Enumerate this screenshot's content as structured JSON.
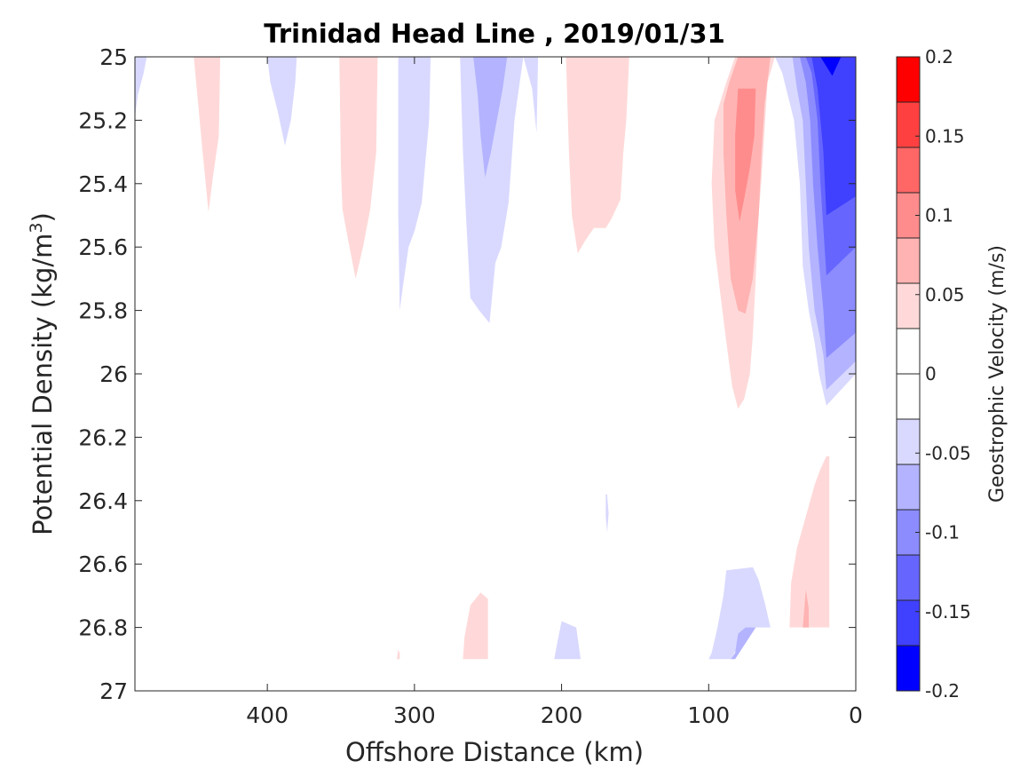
{
  "chart_data": {
    "type": "contour",
    "title": "Trinidad Head Line , 2019/01/31",
    "xlabel": "Offshore Distance (km)",
    "ylabel_main": "Potential Density (kg/m",
    "ylabel_sup": "3",
    "ylabel_close": ")",
    "xlim": [
      490,
      0
    ],
    "ylim": [
      25,
      27
    ],
    "x_ticks": [
      400,
      300,
      200,
      100,
      0
    ],
    "x_tick_labels": [
      "400",
      "300",
      "200",
      "100",
      "0"
    ],
    "y_ticks": [
      25,
      25.2,
      25.4,
      25.6,
      25.8,
      26,
      26.2,
      26.4,
      26.6,
      26.8,
      27
    ],
    "y_tick_labels": [
      "25",
      "25.2",
      "25.4",
      "25.6",
      "25.8",
      "26",
      "26.2",
      "26.4",
      "26.6",
      "26.8",
      "27"
    ],
    "colorbar": {
      "label": "Geostrophic Velocity (m/s)",
      "range": [
        -0.2,
        0.2
      ],
      "level_step": 0.025,
      "ticks": [
        0.2,
        0.15,
        0.1,
        0.05,
        0,
        -0.05,
        -0.1,
        -0.15,
        -0.2
      ],
      "tick_labels": [
        "0.2",
        "0.15",
        "0.1",
        "0.05",
        "0",
        "-0.05",
        "-0.1",
        "-0.15",
        "-0.2"
      ],
      "colors_top_to_bottom": [
        "#ff0000",
        "#ff4040",
        "#ff6666",
        "#ff8c8c",
        "#ffb3b3",
        "#ffd9d9",
        "#ffffff",
        "#ffffff",
        "#d9d9ff",
        "#b3b3ff",
        "#8c8cff",
        "#6666ff",
        "#4040ff",
        "#0000ff"
      ]
    },
    "regions": [
      {
        "level": -0.0375,
        "color": "#d9d9ff",
        "points": [
          [
            490,
            25
          ],
          [
            482,
            25
          ],
          [
            484,
            25.05
          ],
          [
            488,
            25.12
          ],
          [
            490,
            25.19
          ]
        ]
      },
      {
        "level": 0.0375,
        "color": "#ffd9d9",
        "points": [
          [
            450,
            25
          ],
          [
            432,
            25
          ],
          [
            433,
            25.25
          ],
          [
            437,
            25.38
          ],
          [
            440,
            25.49
          ],
          [
            444,
            25.3
          ],
          [
            448,
            25.1
          ]
        ]
      },
      {
        "level": -0.0375,
        "color": "#d9d9ff",
        "points": [
          [
            400,
            25
          ],
          [
            380,
            25
          ],
          [
            381,
            25.08
          ],
          [
            384,
            25.2
          ],
          [
            388,
            25.28
          ],
          [
            393,
            25.17
          ],
          [
            398,
            25.08
          ]
        ]
      },
      {
        "level": 0.0375,
        "color": "#ffd9d9",
        "points": [
          [
            351,
            25
          ],
          [
            325,
            25
          ],
          [
            326,
            25.3
          ],
          [
            330,
            25.48
          ],
          [
            335,
            25.6
          ],
          [
            340,
            25.7
          ],
          [
            345,
            25.58
          ],
          [
            349,
            25.48
          ],
          [
            350,
            25.35
          ]
        ]
      },
      {
        "level": -0.0375,
        "color": "#d9d9ff",
        "points": [
          [
            311,
            25
          ],
          [
            289,
            25
          ],
          [
            290,
            25.2
          ],
          [
            295,
            25.46
          ],
          [
            300,
            25.55
          ],
          [
            304,
            25.6
          ],
          [
            308,
            25.73
          ],
          [
            310,
            25.8
          ],
          [
            311,
            25.5
          ]
        ]
      },
      {
        "level": -0.0375,
        "color": "#d9d9ff",
        "points": [
          [
            269,
            25
          ],
          [
            216,
            25
          ],
          [
            217,
            25.24
          ],
          [
            220,
            25.1
          ],
          [
            226,
            25.0
          ],
          [
            232,
            25.2
          ],
          [
            236,
            25.46
          ],
          [
            241,
            25.6
          ],
          [
            245,
            25.65
          ],
          [
            249,
            25.84
          ],
          [
            256,
            25.8
          ],
          [
            262,
            25.76
          ],
          [
            265,
            25.5
          ],
          [
            267,
            25.3
          ]
        ]
      },
      {
        "level": -0.0625,
        "color": "#b3b3ff",
        "points": [
          [
            260,
            25
          ],
          [
            237,
            25
          ],
          [
            240,
            25.1
          ],
          [
            244,
            25.2
          ],
          [
            248,
            25.3
          ],
          [
            252,
            25.38
          ],
          [
            255,
            25.25
          ],
          [
            257,
            25.12
          ]
        ]
      },
      {
        "level": 0.0375,
        "color": "#ffd9d9",
        "points": [
          [
            197,
            25
          ],
          [
            154,
            25
          ],
          [
            156,
            25.2
          ],
          [
            158,
            25.3
          ],
          [
            160,
            25.45
          ],
          [
            166,
            25.51
          ],
          [
            170,
            25.54
          ],
          [
            178,
            25.54
          ],
          [
            184,
            25.58
          ],
          [
            189,
            25.62
          ],
          [
            193,
            25.5
          ],
          [
            195,
            25.3
          ]
        ]
      },
      {
        "level": 0.0375,
        "color": "#ffd9d9",
        "points": [
          [
            82,
            25
          ],
          [
            55,
            25
          ],
          [
            60,
            25.08
          ],
          [
            64,
            25.38
          ],
          [
            66,
            25.5
          ],
          [
            68,
            25.7
          ],
          [
            70,
            25.88
          ],
          [
            72,
            26.0
          ],
          [
            76,
            26.08
          ],
          [
            80,
            26.11
          ],
          [
            84,
            26.04
          ],
          [
            88,
            25.9
          ],
          [
            92,
            25.75
          ],
          [
            96,
            25.6
          ],
          [
            98,
            25.4
          ],
          [
            96,
            25.2
          ],
          [
            88,
            25.08
          ]
        ]
      },
      {
        "level": 0.0625,
        "color": "#ffb3b3",
        "points": [
          [
            80,
            25
          ],
          [
            58,
            25
          ],
          [
            62,
            25.15
          ],
          [
            64,
            25.3
          ],
          [
            66,
            25.5
          ],
          [
            70,
            25.7
          ],
          [
            75,
            25.81
          ],
          [
            80,
            25.8
          ],
          [
            85,
            25.7
          ],
          [
            88,
            25.5
          ],
          [
            90,
            25.3
          ],
          [
            90,
            25.15
          ],
          [
            86,
            25.08
          ]
        ]
      },
      {
        "level": 0.0875,
        "color": "#ff8c8c",
        "points": [
          [
            80,
            25.1
          ],
          [
            68,
            25.1
          ],
          [
            69,
            25.25
          ],
          [
            72,
            25.35
          ],
          [
            76,
            25.45
          ],
          [
            79,
            25.52
          ],
          [
            82,
            25.42
          ],
          [
            82,
            25.25
          ]
        ]
      },
      {
        "level": -0.0375,
        "color": "#d9d9ff",
        "points": [
          [
            55,
            25
          ],
          [
            0,
            25
          ],
          [
            0,
            26.0
          ],
          [
            20,
            26.1
          ],
          [
            25,
            26.0
          ],
          [
            28,
            25.9
          ],
          [
            32,
            25.8
          ],
          [
            36,
            25.66
          ],
          [
            38,
            25.4
          ],
          [
            42,
            25.2
          ],
          [
            50,
            25.05
          ]
        ]
      },
      {
        "level": -0.0625,
        "color": "#b3b3ff",
        "points": [
          [
            43,
            25
          ],
          [
            0,
            25
          ],
          [
            0,
            25.96
          ],
          [
            20,
            26.05
          ],
          [
            22,
            25.94
          ],
          [
            28,
            25.8
          ],
          [
            32,
            25.6
          ],
          [
            34,
            25.4
          ],
          [
            36,
            25.2
          ],
          [
            40,
            25.1
          ]
        ]
      },
      {
        "level": -0.0875,
        "color": "#8c8cff",
        "points": [
          [
            38,
            25
          ],
          [
            0,
            25
          ],
          [
            0,
            25.87
          ],
          [
            20,
            25.95
          ],
          [
            22,
            25.8
          ],
          [
            26,
            25.6
          ],
          [
            29,
            25.4
          ],
          [
            31,
            25.2
          ],
          [
            34,
            25.08
          ]
        ]
      },
      {
        "level": -0.1125,
        "color": "#6666ff",
        "points": [
          [
            34,
            25
          ],
          [
            0,
            25
          ],
          [
            0,
            25.6
          ],
          [
            20,
            25.69
          ],
          [
            24,
            25.4
          ],
          [
            26,
            25.2
          ],
          [
            30,
            25.05
          ]
        ]
      },
      {
        "level": -0.1375,
        "color": "#4040ff",
        "points": [
          [
            30,
            25
          ],
          [
            0,
            25
          ],
          [
            0,
            25.44
          ],
          [
            20,
            25.5
          ],
          [
            22,
            25.3
          ],
          [
            26,
            25.1
          ]
        ]
      },
      {
        "level": -0.1625,
        "color": "#0000ff",
        "points": [
          [
            24,
            25
          ],
          [
            10,
            25
          ],
          [
            12,
            25.02
          ],
          [
            16,
            25.06
          ],
          [
            20,
            25.03
          ]
        ]
      },
      {
        "level": -0.0375,
        "color": "#d9d9ff",
        "points": [
          [
            170,
            26.38
          ],
          [
            169,
            26.38
          ],
          [
            168,
            26.44
          ],
          [
            169,
            26.5
          ],
          [
            170,
            26.45
          ]
        ]
      },
      {
        "level": 0.0375,
        "color": "#ffd9d9",
        "points": [
          [
            20,
            26.26
          ],
          [
            18,
            26.26
          ],
          [
            18,
            26.8
          ],
          [
            45,
            26.8
          ],
          [
            44,
            26.66
          ],
          [
            40,
            26.55
          ],
          [
            34,
            26.45
          ],
          [
            28,
            26.35
          ],
          [
            24,
            26.3
          ]
        ]
      },
      {
        "level": 0.0625,
        "color": "#ffb3b3",
        "points": [
          [
            36,
            26.8
          ],
          [
            32,
            26.8
          ],
          [
            32,
            26.74
          ],
          [
            34,
            26.68
          ]
        ]
      },
      {
        "level": -0.0375,
        "color": "#d9d9ff",
        "points": [
          [
            88,
            26.62
          ],
          [
            70,
            26.61
          ],
          [
            66,
            26.65
          ],
          [
            62,
            26.72
          ],
          [
            58,
            26.8
          ],
          [
            70,
            26.8
          ],
          [
            80,
            26.86
          ],
          [
            85,
            26.9
          ],
          [
            100,
            26.9
          ],
          [
            98,
            26.88
          ],
          [
            94,
            26.8
          ],
          [
            90,
            26.7
          ]
        ]
      },
      {
        "level": -0.0625,
        "color": "#b3b3ff",
        "points": [
          [
            75,
            26.8
          ],
          [
            68,
            26.8
          ],
          [
            82,
            26.9
          ],
          [
            85,
            26.9
          ],
          [
            82,
            26.88
          ],
          [
            80,
            26.82
          ]
        ]
      },
      {
        "level": 0.0375,
        "color": "#ffd9d9",
        "points": [
          [
            267,
            26.9
          ],
          [
            250,
            26.9
          ],
          [
            250,
            26.71
          ],
          [
            255,
            26.69
          ],
          [
            262,
            26.73
          ],
          [
            266,
            26.83
          ]
        ]
      },
      {
        "level": 0.0375,
        "color": "#ffd9d9",
        "points": [
          [
            312,
            26.9
          ],
          [
            310,
            26.9
          ],
          [
            310,
            26.88
          ],
          [
            311,
            26.87
          ]
        ]
      },
      {
        "level": -0.0375,
        "color": "#d9d9ff",
        "points": [
          [
            205,
            26.9
          ],
          [
            187,
            26.9
          ],
          [
            190,
            26.8
          ],
          [
            200,
            26.78
          ],
          [
            203,
            26.85
          ]
        ]
      }
    ]
  }
}
